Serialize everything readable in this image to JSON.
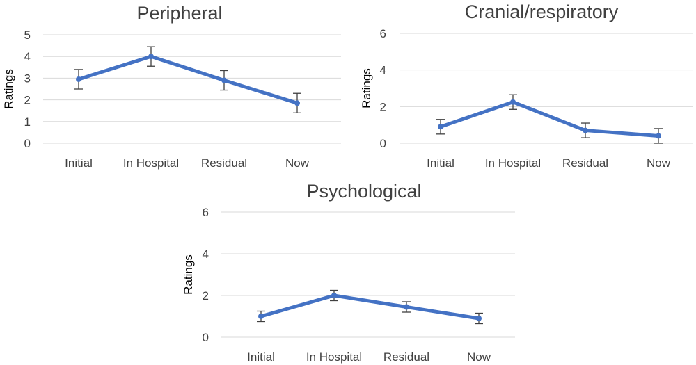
{
  "colors": {
    "line": "#4472C4",
    "grid": "#d9d9d9",
    "text": "#404040",
    "errorbar": "#404040"
  },
  "chart_data": [
    {
      "type": "line",
      "title": "Peripheral",
      "ylabel": "Ratings",
      "xlabel": "",
      "categories": [
        "Initial",
        "In Hospital",
        "Residual",
        "Now"
      ],
      "y_ticks": [
        "0",
        "1",
        "2",
        "3",
        "4",
        "5"
      ],
      "ylim": [
        0,
        5
      ],
      "grid": "horizontal",
      "series": [
        {
          "values": [
            2.95,
            4.0,
            2.9,
            1.85
          ],
          "error": [
            0.45,
            0.45,
            0.45,
            0.45
          ]
        }
      ]
    },
    {
      "type": "line",
      "title": "Cranial/respiratory",
      "ylabel": "Ratings",
      "xlabel": "",
      "categories": [
        "Initial",
        "In Hospital",
        "Residual",
        "Now"
      ],
      "y_ticks": [
        "0",
        "2",
        "4",
        "6"
      ],
      "ylim": [
        0,
        6
      ],
      "grid": "horizontal",
      "series": [
        {
          "values": [
            0.9,
            2.25,
            0.7,
            0.4
          ],
          "error": [
            0.4,
            0.4,
            0.4,
            0.4
          ]
        }
      ]
    },
    {
      "type": "line",
      "title": "Psychological",
      "ylabel": "Ratings",
      "xlabel": "",
      "categories": [
        "Initial",
        "In Hospital",
        "Residual",
        "Now"
      ],
      "y_ticks": [
        "0",
        "2",
        "4",
        "6"
      ],
      "ylim": [
        0,
        6
      ],
      "grid": "horizontal",
      "series": [
        {
          "values": [
            1.0,
            2.0,
            1.45,
            0.9
          ],
          "error": [
            0.25,
            0.25,
            0.25,
            0.25
          ]
        }
      ]
    }
  ]
}
